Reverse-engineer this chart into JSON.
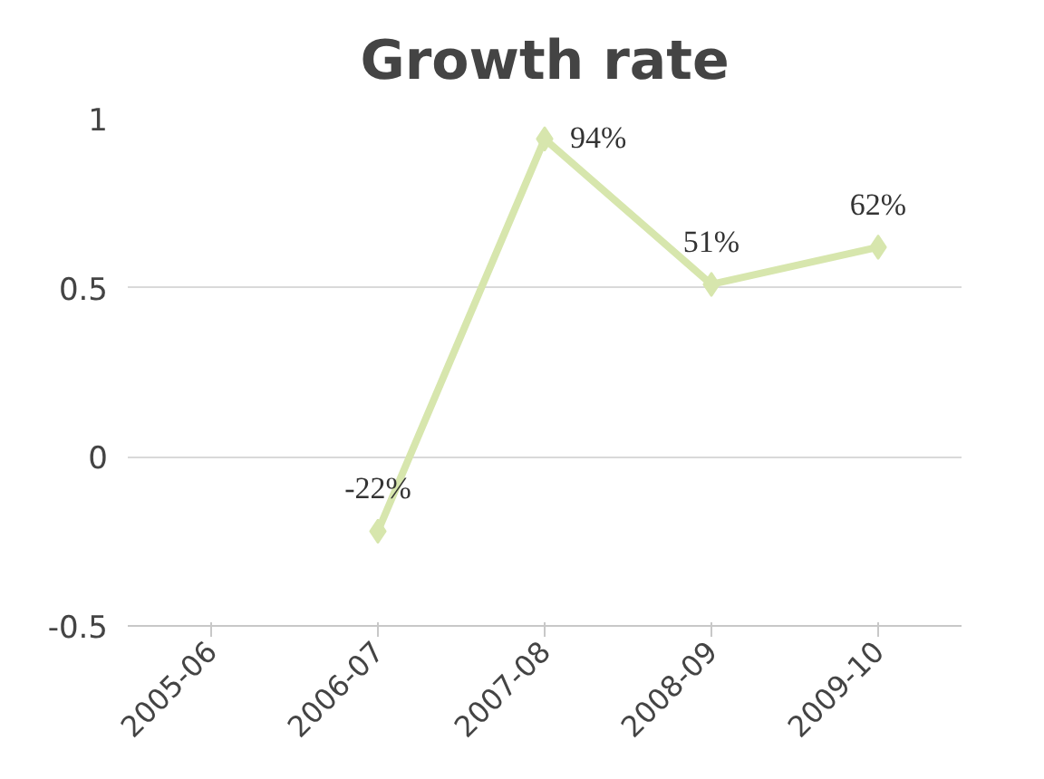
{
  "chart_data": {
    "type": "line",
    "title": "Growth rate",
    "categories": [
      "2005-06",
      "2006-07",
      "2007-08",
      "2008-09",
      "2009-10"
    ],
    "series": [
      {
        "color": "#d7e6ad",
        "values": [
          null,
          -0.22,
          0.94,
          0.51,
          0.62
        ],
        "value_labels": [
          null,
          "-22%",
          "94%",
          "51%",
          "62%"
        ]
      }
    ],
    "ylim": [
      -0.5,
      1
    ],
    "yticks": [
      -0.5,
      0,
      0.5,
      1
    ],
    "grid": "y",
    "marker": "diamond",
    "line_style": "solid"
  }
}
